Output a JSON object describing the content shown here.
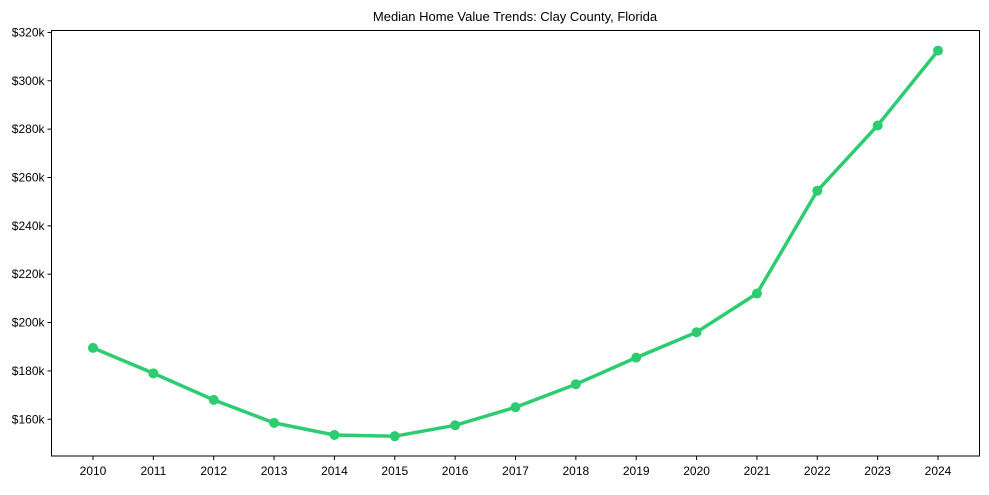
{
  "chart_data": {
    "type": "line",
    "title": "Median Home Value Trends: Clay County, Florida",
    "xlabel": "",
    "ylabel": "",
    "categories": [
      "2010",
      "2011",
      "2012",
      "2013",
      "2014",
      "2015",
      "2016",
      "2017",
      "2018",
      "2019",
      "2020",
      "2021",
      "2022",
      "2023",
      "2024"
    ],
    "series": [
      {
        "name": "Median Home Value",
        "color": "#2ecc71",
        "values": [
          189500,
          179000,
          168000,
          158500,
          153500,
          153000,
          157500,
          165000,
          174500,
          185500,
          196000,
          212000,
          254500,
          281500,
          312500
        ]
      }
    ],
    "ylim": [
      144800,
      320800
    ],
    "yticks": [
      160000,
      180000,
      200000,
      220000,
      240000,
      260000,
      280000,
      300000,
      320000
    ],
    "ytick_labels": [
      "$160k",
      "$180k",
      "$200k",
      "$220k",
      "$240k",
      "$260k",
      "$280k",
      "$300k",
      "$320k"
    ],
    "grid": false,
    "legend": null,
    "markers": true
  }
}
